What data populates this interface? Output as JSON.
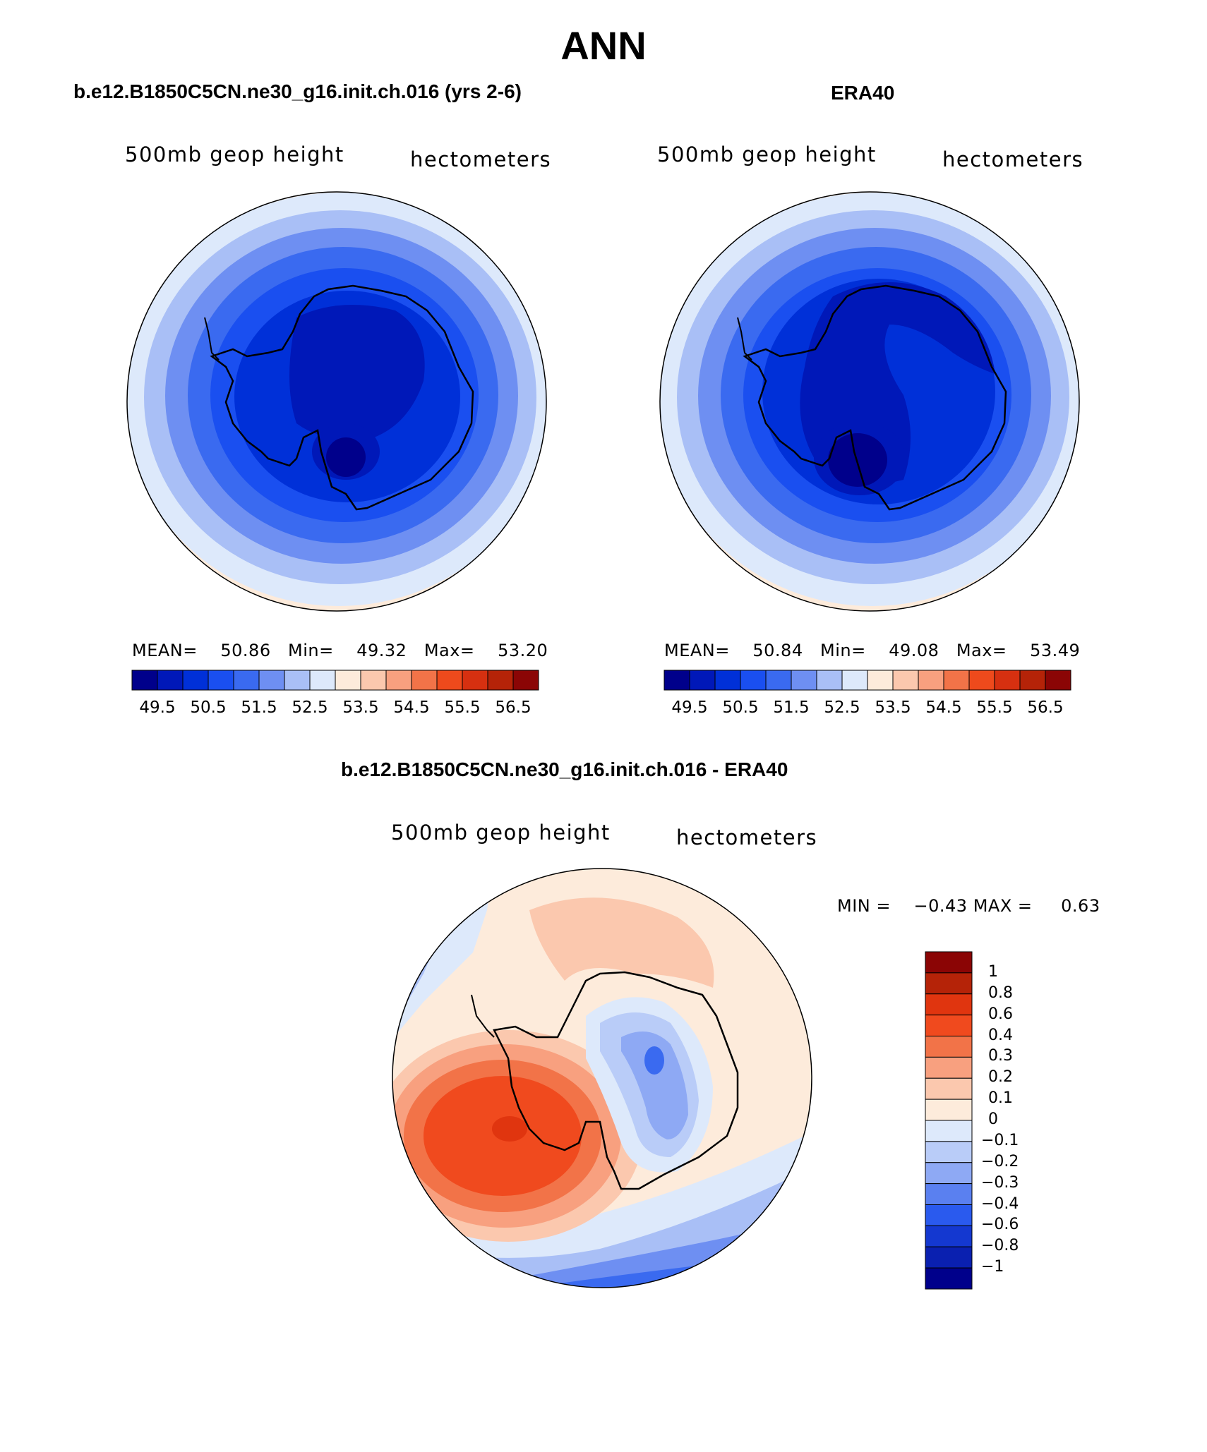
{
  "figure": {
    "season": "ANN",
    "variable": "500mb geop height",
    "units": "hectometers"
  },
  "panels": [
    {
      "title": "b.e12.B1850C5CN.ne30_g16.init.ch.016 (yrs 2-6)",
      "stats": {
        "mean_label": "MEAN=",
        "mean": "50.86",
        "min_label": "Min=",
        "min": "49.32",
        "max_label": "Max=",
        "max": "53.20"
      }
    },
    {
      "title": "ERA40",
      "stats": {
        "mean_label": "MEAN=",
        "mean": "50.84",
        "min_label": "Min=",
        "min": "49.08",
        "max_label": "Max=",
        "max": "53.49"
      }
    },
    {
      "title": "b.e12.B1850C5CN.ne30_g16.init.ch.016 - ERA40",
      "stats": {
        "min_label": "MIN =",
        "min": "−0.43",
        "max_label": "MAX =",
        "max": "0.63"
      }
    }
  ],
  "colorbars": {
    "absolute": {
      "colors": [
        "#00008B",
        "#0018B8",
        "#0030D8",
        "#1A4FF0",
        "#3A6AF0",
        "#6E8FF2",
        "#A9BFF6",
        "#DDE9FB",
        "#FDEBDB",
        "#FBC8AE",
        "#F8A07F",
        "#F27348",
        "#EE4A1C",
        "#D63010",
        "#B52308",
        "#8B0505"
      ],
      "labels": [
        "49.5",
        "50.5",
        "51.5",
        "52.5",
        "53.5",
        "54.5",
        "55.5",
        "56.5"
      ]
    },
    "difference": {
      "colors": [
        "#8B0505",
        "#B52308",
        "#E0350F",
        "#F04A1E",
        "#F27348",
        "#F8A07F",
        "#FBC8AE",
        "#FDEBDB",
        "#DDE9FB",
        "#B9CCF8",
        "#8EA9F4",
        "#5A80F0",
        "#2A5AEE",
        "#1438D0",
        "#0A20B0",
        "#00008B"
      ],
      "labels": [
        "1",
        "0.8",
        "0.6",
        "0.4",
        "0.3",
        "0.2",
        "0.1",
        "0",
        "−0.1",
        "−0.2",
        "−0.3",
        "−0.4",
        "−0.6",
        "−0.8",
        "−1"
      ]
    }
  },
  "colors": {
    "coastline": "#000000",
    "deep_blue": "#00008B",
    "warm_red": "#EE4A1C"
  }
}
